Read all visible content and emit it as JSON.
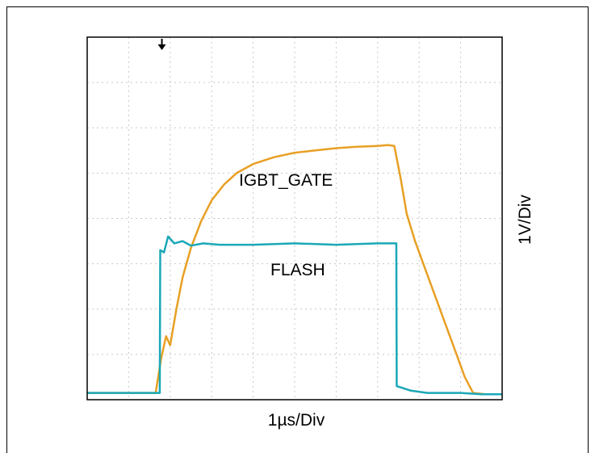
{
  "chart_data": {
    "type": "line",
    "title": "",
    "xlabel": "1µs/Div",
    "ylabel": "1V/Div",
    "divisions": {
      "x": 10,
      "y": 8
    },
    "xlim": [
      0,
      10
    ],
    "ylim": [
      0,
      8
    ],
    "grid": true,
    "trigger_marker": {
      "x": 1.8
    },
    "series": [
      {
        "name": "IGBT_GATE",
        "color": "#e8a024",
        "x": [
          0,
          1.65,
          1.78,
          1.9,
          2.0,
          2.15,
          2.3,
          2.5,
          2.75,
          3.0,
          3.3,
          3.6,
          4.0,
          4.5,
          5.0,
          5.5,
          6.0,
          6.5,
          7.0,
          7.25,
          7.4,
          7.55,
          7.7,
          7.9,
          8.1,
          8.3,
          8.5,
          8.7,
          8.9,
          9.1,
          9.3,
          9.6,
          10.0
        ],
        "values": [
          0.15,
          0.15,
          0.9,
          1.4,
          1.2,
          2.0,
          2.7,
          3.35,
          3.95,
          4.4,
          4.75,
          5.0,
          5.2,
          5.35,
          5.45,
          5.5,
          5.55,
          5.58,
          5.6,
          5.62,
          5.6,
          4.9,
          4.1,
          3.5,
          3.0,
          2.5,
          2.0,
          1.5,
          1.0,
          0.5,
          0.15,
          0.12,
          0.12
        ]
      },
      {
        "name": "FLASH",
        "color": "#1aa8b8",
        "x": [
          0,
          1.75,
          1.76,
          1.85,
          1.95,
          2.1,
          2.3,
          2.5,
          2.8,
          3.2,
          4.0,
          5.0,
          6.0,
          7.0,
          7.45,
          7.46,
          7.8,
          8.2,
          9.0,
          9.5,
          10.0
        ],
        "values": [
          0.15,
          0.15,
          3.3,
          3.25,
          3.6,
          3.45,
          3.5,
          3.4,
          3.45,
          3.42,
          3.42,
          3.45,
          3.42,
          3.45,
          3.45,
          0.3,
          0.2,
          0.15,
          0.15,
          0.12,
          0.12
        ]
      }
    ]
  }
}
